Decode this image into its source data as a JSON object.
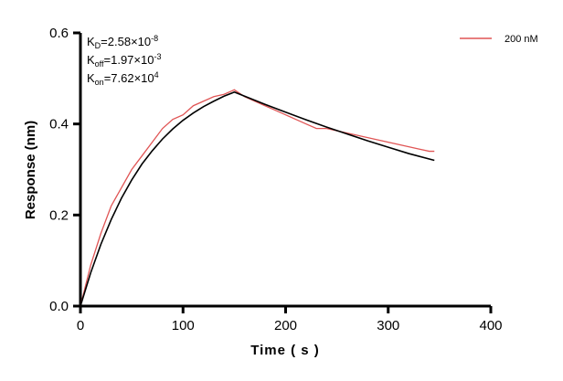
{
  "chart_data": {
    "type": "line",
    "title": "",
    "xlabel": "Time ( s )",
    "ylabel": "Response (nm)",
    "xlim": [
      0,
      400
    ],
    "ylim": [
      0,
      0.6
    ],
    "xticks": [
      "0",
      "100",
      "200",
      "300",
      "400"
    ],
    "yticks": [
      "0.0",
      "0.2",
      "0.4",
      "0.6"
    ],
    "grid": false,
    "legend_placement": "top-right",
    "annotations": [
      {
        "base": "K",
        "sub": "D",
        "eq": "=2.58×10",
        "sup": "-8"
      },
      {
        "base": "K",
        "sub": "off",
        "eq": "=1.97×10",
        "sup": "-3"
      },
      {
        "base": "K",
        "sub": "on",
        "eq": "=7.62×10",
        "sup": "4"
      }
    ],
    "series": [
      {
        "name": "200 nM",
        "color": "#e05555",
        "x": [
          0,
          10,
          20,
          30,
          40,
          50,
          60,
          70,
          80,
          90,
          100,
          110,
          120,
          130,
          140,
          150,
          160,
          170,
          180,
          190,
          200,
          210,
          220,
          230,
          240,
          250,
          260,
          270,
          280,
          290,
          300,
          310,
          320,
          330,
          340,
          345
        ],
        "y": [
          0,
          0.09,
          0.16,
          0.22,
          0.26,
          0.3,
          0.33,
          0.36,
          0.39,
          0.41,
          0.42,
          0.44,
          0.45,
          0.46,
          0.465,
          0.475,
          0.46,
          0.45,
          0.44,
          0.43,
          0.42,
          0.41,
          0.4,
          0.39,
          0.39,
          0.385,
          0.38,
          0.375,
          0.37,
          0.365,
          0.36,
          0.355,
          0.35,
          0.345,
          0.34,
          0.34
        ]
      },
      {
        "color": "#000000",
        "x": [
          0,
          10,
          20,
          30,
          40,
          50,
          60,
          70,
          80,
          90,
          100,
          110,
          120,
          130,
          140,
          150,
          160,
          180,
          200,
          220,
          240,
          260,
          280,
          300,
          320,
          345
        ],
        "y": [
          0,
          0.073,
          0.136,
          0.19,
          0.237,
          0.277,
          0.312,
          0.341,
          0.367,
          0.389,
          0.408,
          0.424,
          0.438,
          0.45,
          0.461,
          0.47,
          0.461,
          0.443,
          0.426,
          0.409,
          0.393,
          0.378,
          0.363,
          0.349,
          0.335,
          0.32
        ]
      }
    ]
  }
}
